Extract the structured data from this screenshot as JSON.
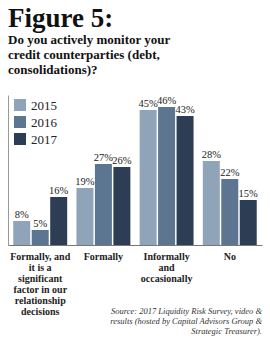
{
  "chart_data": {
    "type": "bar",
    "title": "Figure 5:",
    "subtitle": "Do you actively monitor your credit counterparties (debt, consolidations)?",
    "categories": [
      "Formally, and it is a significant factor in our relationship decisions",
      "Formally",
      "Informally and occasionally",
      "No"
    ],
    "series": [
      {
        "name": "2015",
        "color": "#8fa3b9",
        "values": [
          8,
          19,
          45,
          28
        ],
        "value_labels": [
          "8%",
          "19%",
          "45%",
          "28%"
        ]
      },
      {
        "name": "2016",
        "color": "#5c7591",
        "values": [
          5,
          27,
          46,
          22
        ],
        "value_labels": [
          "5%",
          "27%",
          "46%",
          "22%"
        ]
      },
      {
        "name": "2017",
        "color": "#2d3e54",
        "values": [
          16,
          26,
          43,
          15
        ],
        "value_labels": [
          "16%",
          "26%",
          "43%",
          "15%"
        ]
      }
    ],
    "ylim": [
      0,
      50
    ],
    "legend": "top-left",
    "data_labels": true,
    "tick_labels": "x",
    "annotations": [
      "Source: 2017 Liquidity Risk Survey, video & results (hosted by Capital Advisors Group & Strategic Treasurer)."
    ]
  }
}
